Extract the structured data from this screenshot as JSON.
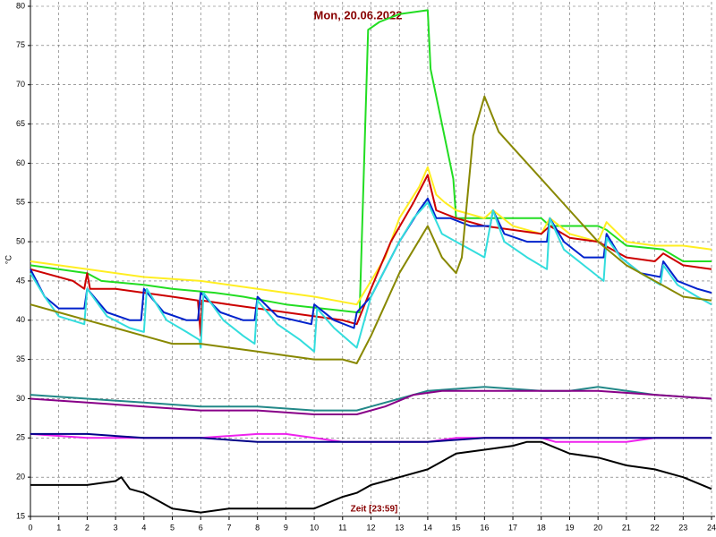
{
  "chart_data": {
    "type": "line",
    "title": "Mon, 20.06.2022",
    "ylabel": "°C",
    "xlabel": "Zeit [23:59]",
    "xlim": [
      0,
      24
    ],
    "xticks": [
      0,
      1,
      2,
      3,
      4,
      5,
      6,
      7,
      8,
      9,
      10,
      11,
      12,
      13,
      14,
      15,
      16,
      17,
      18,
      19,
      20,
      21,
      22,
      23,
      24
    ],
    "ylim": [
      15,
      80
    ],
    "yticks": [
      15,
      20,
      25,
      30,
      35,
      40,
      45,
      50,
      55,
      60,
      65,
      70,
      75,
      80
    ],
    "grid": true,
    "series": [
      {
        "color": "#22dd22",
        "x": [
          0,
          2,
          2.5,
          4,
          5,
          6.5,
          7.5,
          9,
          11.5,
          11.6,
          11.9,
          12.3,
          13,
          14,
          14.1,
          14.5,
          14.9,
          15,
          15.5,
          16.3,
          17,
          18,
          18.3,
          20,
          20.3,
          21,
          22.3,
          23,
          24
        ],
        "values": [
          47,
          46,
          45,
          44.5,
          44,
          43.5,
          43,
          42,
          41,
          41,
          77,
          78,
          79,
          79.5,
          72,
          65,
          58,
          53,
          53,
          53,
          53,
          53,
          52,
          52,
          51.5,
          49.5,
          49,
          47.5,
          47.5
        ]
      },
      {
        "color": "#ffee22",
        "x": [
          0,
          2,
          4,
          6,
          8,
          10,
          11.5,
          12.5,
          13,
          13.7,
          14,
          14.3,
          14.6,
          15,
          16,
          16.3,
          17,
          18,
          18.3,
          19,
          20,
          20.3,
          21,
          22,
          23,
          24
        ],
        "values": [
          47.5,
          46.5,
          45.5,
          45,
          44,
          43,
          42,
          48,
          53,
          57,
          59.5,
          56,
          55,
          54,
          53,
          54,
          52,
          51,
          53,
          51,
          50,
          52.5,
          50,
          49.5,
          49.5,
          49
        ]
      },
      {
        "color": "#cc0000",
        "x": [
          0,
          1.5,
          1.9,
          2,
          2.1,
          3,
          4,
          5,
          5.9,
          6,
          6.05,
          7,
          8,
          9,
          10,
          11,
          11.5,
          12,
          12.7,
          13.5,
          14,
          14.3,
          15,
          16,
          17,
          18,
          18.3,
          19,
          20,
          21,
          22,
          22.3,
          23,
          24
        ],
        "values": [
          46.5,
          45,
          44,
          46,
          44,
          44,
          43.5,
          43,
          42.5,
          38,
          42.5,
          42,
          41.5,
          41,
          40.5,
          40,
          39.5,
          44,
          50,
          55,
          58.5,
          54,
          53,
          52,
          51.5,
          51,
          52,
          50.5,
          50,
          48,
          47.5,
          48.5,
          47,
          46.5
        ]
      },
      {
        "color": "#0022cc",
        "x": [
          0,
          0.5,
          1,
          1.9,
          2,
          2.7,
          3.5,
          3.9,
          4,
          4.7,
          5.5,
          5.9,
          6,
          6.7,
          7.5,
          7.9,
          8,
          8.7,
          9.9,
          10,
          10.7,
          11.4,
          11.5,
          12,
          13,
          13.7,
          14,
          14.3,
          14.8,
          15.5,
          16.2,
          16.3,
          16.7,
          17.5,
          18.2,
          18.3,
          18.8,
          19.5,
          20.2,
          20.3,
          20.8,
          21.5,
          22.2,
          22.3,
          22.8,
          23.5,
          24
        ],
        "values": [
          46.5,
          43,
          41.5,
          41.5,
          44,
          41,
          40,
          40,
          44,
          41,
          40,
          40,
          43.5,
          41,
          40,
          40,
          43,
          40.5,
          39.5,
          42,
          40,
          39,
          41,
          43,
          50,
          54,
          55.5,
          53,
          53,
          52,
          52,
          54,
          51,
          50,
          50,
          53,
          50,
          48,
          48,
          51,
          48,
          46,
          45.5,
          47.5,
          45,
          44,
          43.5
        ]
      },
      {
        "color": "#33dddd",
        "x": [
          0,
          0.5,
          1,
          1.9,
          2,
          2.7,
          3.5,
          4,
          4.1,
          4.8,
          5.5,
          5.95,
          6,
          6.1,
          6.8,
          7.5,
          7.9,
          8,
          8.7,
          9.5,
          10,
          10.1,
          10.7,
          11.5,
          12,
          13,
          13.5,
          14,
          14.5,
          15,
          15.5,
          16,
          16.3,
          16.7,
          17.5,
          18.2,
          18.3,
          18.8,
          19.5,
          20.2,
          20.3,
          20.8,
          21.5,
          22.2,
          22.3,
          22.8,
          23.5,
          24
        ],
        "values": [
          46,
          43,
          40.5,
          39.5,
          44,
          40.5,
          39,
          38.5,
          44,
          40,
          38.5,
          37.5,
          36.5,
          43.5,
          40,
          38,
          37,
          42.5,
          39.5,
          37.5,
          36,
          41.5,
          39,
          36.5,
          43,
          50,
          53,
          55,
          51,
          50,
          49,
          48,
          54,
          50,
          48,
          46.5,
          53,
          49,
          47,
          45,
          50.5,
          48,
          46,
          44.5,
          47,
          44.5,
          43,
          42
        ]
      },
      {
        "color": "#888800",
        "x": [
          0,
          1,
          2,
          3,
          4,
          5,
          6,
          7,
          8,
          9,
          10,
          11,
          11.5,
          12,
          12.5,
          13,
          14,
          14.5,
          15,
          15.2,
          15.6,
          16,
          16.5,
          17,
          18,
          19,
          20,
          21,
          22,
          23,
          24
        ],
        "values": [
          42,
          41,
          40,
          39,
          38,
          37,
          37,
          36.5,
          36,
          35.5,
          35,
          35,
          34.5,
          38,
          42,
          46,
          52,
          48,
          46,
          48,
          63.5,
          68.5,
          64,
          62,
          58,
          54,
          50,
          47,
          45,
          43,
          42.5
        ]
      },
      {
        "color": "#228888",
        "x": [
          0,
          2,
          4,
          6,
          8,
          10,
          11.5,
          12,
          13,
          14,
          16,
          18,
          19,
          20,
          22,
          24
        ],
        "values": [
          30.5,
          30,
          29.5,
          29,
          29,
          28.5,
          28.5,
          29,
          30,
          31,
          31.5,
          31,
          31,
          31.5,
          30.5,
          30
        ]
      },
      {
        "color": "#880088",
        "x": [
          0,
          2,
          4,
          6,
          8,
          10,
          11.5,
          12.5,
          13.5,
          14.5,
          16,
          18,
          20,
          22,
          24
        ],
        "values": [
          30,
          29.5,
          29,
          28.5,
          28.5,
          28,
          28,
          29,
          30.5,
          31,
          31,
          31,
          31,
          30.5,
          30
        ]
      },
      {
        "color": "#ee22ee",
        "x": [
          0,
          2,
          4,
          6,
          8,
          9,
          10,
          11,
          14,
          15,
          16.5,
          18,
          18.5,
          21,
          22,
          24
        ],
        "values": [
          25.5,
          25,
          25,
          25,
          25.5,
          25.5,
          25,
          24.5,
          24.5,
          25,
          25,
          25,
          24.5,
          24.5,
          25,
          25
        ]
      },
      {
        "color": "#000088",
        "x": [
          0,
          2,
          4,
          6,
          8,
          10,
          12,
          14,
          16,
          18,
          20,
          22,
          24
        ],
        "values": [
          25.5,
          25.5,
          25,
          25,
          24.5,
          24.5,
          24.5,
          24.5,
          25,
          25,
          25,
          25,
          25
        ]
      },
      {
        "color": "#000000",
        "x": [
          0,
          1,
          2,
          3,
          3.2,
          3.5,
          4,
          4.5,
          5,
          6,
          7,
          8,
          9,
          10,
          11,
          11.5,
          12,
          13,
          14,
          14.5,
          15,
          16,
          17,
          17.5,
          18,
          19,
          20,
          21,
          22,
          23,
          24
        ],
        "values": [
          19,
          19,
          19,
          19.5,
          20,
          18.5,
          18,
          17,
          16,
          15.5,
          16,
          16,
          16,
          16,
          17.5,
          18,
          19,
          20,
          21,
          22,
          23,
          23.5,
          24,
          24.5,
          24.5,
          23,
          22.5,
          21.5,
          21,
          20,
          18.5
        ]
      }
    ]
  }
}
